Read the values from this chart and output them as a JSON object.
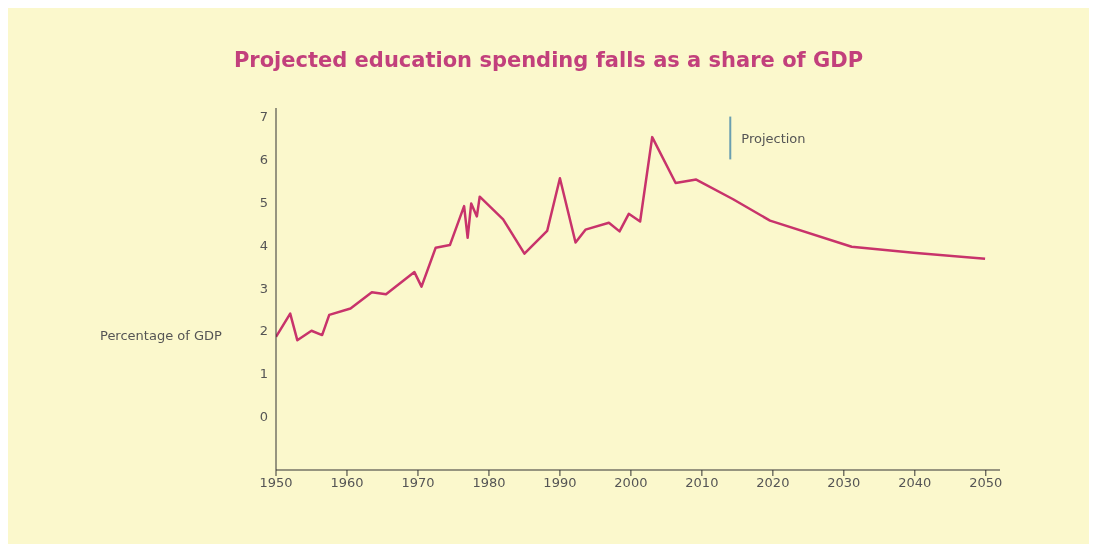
{
  "chart_data": {
    "type": "line",
    "title": "Projected education spending falls as a share of GDP",
    "ylabel": "Percentage of GDP",
    "x": [
      1950,
      1952,
      1953,
      1955,
      1956.5,
      1957.5,
      1960.5,
      1963.5,
      1965.5,
      1969.5,
      1970.5,
      1972.5,
      1974.5,
      1976.5,
      1977,
      1977.5,
      1978.3,
      1978.7,
      1982,
      1985,
      1988.2,
      1990,
      1992.2,
      1993.6,
      1996.9,
      1998.4,
      1999.7,
      2001.3,
      2003,
      2006.3,
      2009.2,
      2014.4,
      2019.6,
      2031.1,
      2039.8,
      2049.9
    ],
    "series": [
      {
        "color": "#c8336b",
        "values": [
          1.86,
          2.4,
          1.78,
          2.0,
          1.9,
          2.37,
          2.52,
          2.9,
          2.85,
          3.37,
          3.03,
          3.94,
          4.0,
          4.91,
          4.17,
          4.97,
          4.67,
          5.13,
          4.6,
          3.8,
          4.33,
          5.56,
          4.06,
          4.36,
          4.52,
          4.32,
          4.73,
          4.55,
          6.52,
          5.45,
          5.53,
          5.07,
          4.57,
          3.96,
          3.82,
          3.68
        ]
      }
    ],
    "xlim": [
      1950,
      2052
    ],
    "xticks": [
      1950,
      1960,
      1970,
      1980,
      1990,
      2000,
      2010,
      2020,
      2030,
      2040,
      2050
    ],
    "ylim": [
      -1.25,
      7.2
    ],
    "yticks": [
      0,
      1,
      2,
      3,
      4,
      5,
      6,
      7
    ],
    "ref_lines": [
      {
        "axis": "x",
        "value": 2014,
        "label": "Projection",
        "color": "#6a9fb0"
      }
    ],
    "grid": false,
    "legend": false,
    "marker": "none",
    "line_style": "solid"
  }
}
